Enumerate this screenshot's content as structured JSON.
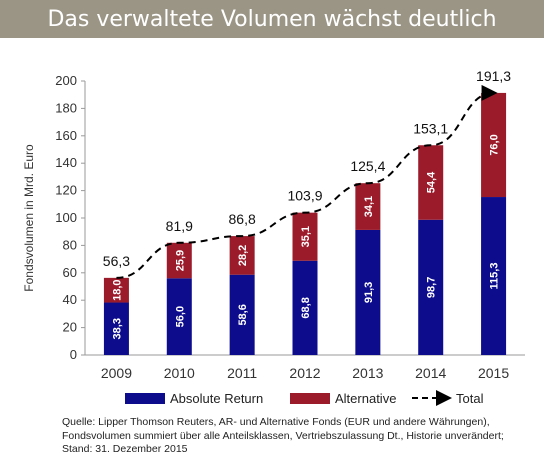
{
  "header": {
    "title": "Das verwaltete Volumen wächst deutlich"
  },
  "chart_data": {
    "type": "bar",
    "stacked": true,
    "title": "Das verwaltete Volumen wächst deutlich",
    "xlabel": "",
    "ylabel": "Fondsvolumen in Mrd. Euro",
    "ylim": [
      0,
      200
    ],
    "yticks": [
      0,
      20,
      40,
      60,
      80,
      100,
      120,
      140,
      160,
      180,
      200
    ],
    "ytick_labels": [
      "0",
      "20",
      "40",
      "60",
      "80",
      "100",
      "120",
      "140",
      "160",
      "180",
      "200"
    ],
    "grid": false,
    "legend_position": "bottom",
    "categories": [
      "2009",
      "2010",
      "2011",
      "2012",
      "2013",
      "2014",
      "2015"
    ],
    "series": [
      {
        "name": "Absolute Return",
        "color": "#0c0c8c",
        "values": [
          38.3,
          56.0,
          58.6,
          68.8,
          91.3,
          98.7,
          115.3
        ],
        "labels": [
          "38,3",
          "56,0",
          "58,6",
          "68,8",
          "91,3",
          "98,7",
          "115,3"
        ]
      },
      {
        "name": "Alternative",
        "color": "#9b1b2b",
        "values": [
          18.0,
          25.9,
          28.2,
          35.1,
          34.1,
          54.4,
          76.0
        ],
        "labels": [
          "18,0",
          "25,9",
          "28,2",
          "35,1",
          "34,1",
          "54,4",
          "76,0"
        ]
      },
      {
        "name": "Total",
        "style": "dashed-line-arrow",
        "color": "#000000",
        "values": [
          56.3,
          81.9,
          86.8,
          103.9,
          125.4,
          153.1,
          191.3
        ],
        "labels": [
          "56,3",
          "81,9",
          "86,8",
          "103,9",
          "125,4",
          "153,1",
          "191,3"
        ]
      }
    ]
  },
  "caption": {
    "lines": [
      "Quelle: Lipper Thomson Reuters, AR- und Alternative Fonds (EUR und andere Währungen),",
      "Fondsvolumen summiert über alle Anteilsklassen, Vertriebszulassung  Dt., Historie unverändert;",
      "Stand: 31. Dezember 2015"
    ]
  }
}
